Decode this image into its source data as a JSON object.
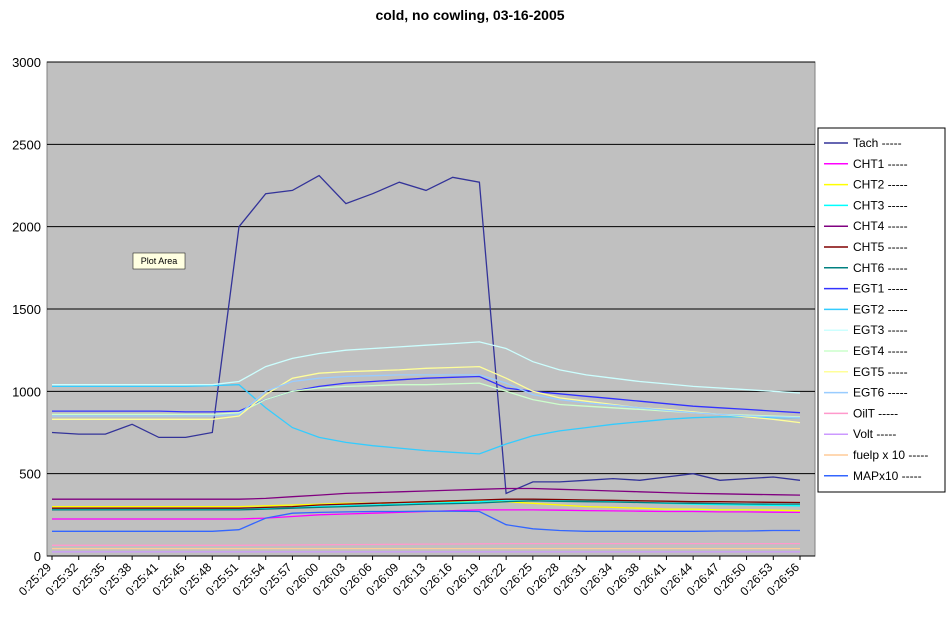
{
  "chart_data": {
    "type": "line",
    "title": "cold, no cowling, 03-16-2005",
    "annotation": "Plot Area",
    "categories": [
      "0:25:29",
      "0:25:32",
      "0:25:35",
      "0:25:38",
      "0:25:41",
      "0:25:45",
      "0:25:48",
      "0:25:51",
      "0:25:54",
      "0:25:57",
      "0:26:00",
      "0:26:03",
      "0:26:06",
      "0:26:09",
      "0:26:13",
      "0:26:16",
      "0:26:19",
      "0:26:22",
      "0:26:25",
      "0:26:28",
      "0:26:31",
      "0:26:34",
      "0:26:38",
      "0:26:41",
      "0:26:44",
      "0:26:47",
      "0:26:50",
      "0:26:53",
      "0:26:56"
    ],
    "ylim": [
      0,
      3000
    ],
    "yticks": [
      0,
      500,
      1000,
      1500,
      2000,
      2500,
      3000
    ],
    "grid": true,
    "legend": "right",
    "series": [
      {
        "name": "Tach -----",
        "color": "#333399",
        "values": [
          750,
          740,
          740,
          800,
          720,
          720,
          750,
          2000,
          2200,
          2220,
          2310,
          2140,
          2200,
          2270,
          2220,
          2300,
          2270,
          380,
          450,
          450,
          460,
          470,
          460,
          480,
          500,
          460,
          470,
          480,
          460
        ]
      },
      {
        "name": "CHT1 -----",
        "color": "#ff00ff",
        "values": [
          225,
          225,
          225,
          225,
          225,
          225,
          225,
          225,
          230,
          240,
          250,
          255,
          260,
          265,
          270,
          275,
          280,
          280,
          280,
          278,
          276,
          274,
          272,
          270,
          270,
          268,
          268,
          266,
          265
        ]
      },
      {
        "name": "CHT2 -----",
        "color": "#ffff00",
        "values": [
          300,
          300,
          300,
          300,
          300,
          300,
          300,
          300,
          305,
          310,
          315,
          320,
          320,
          325,
          330,
          330,
          335,
          330,
          320,
          310,
          300,
          295,
          290,
          285,
          285,
          280,
          280,
          278,
          275
        ]
      },
      {
        "name": "CHT3 -----",
        "color": "#00ffff",
        "values": [
          285,
          285,
          285,
          285,
          285,
          285,
          285,
          285,
          290,
          295,
          300,
          305,
          310,
          315,
          320,
          325,
          330,
          340,
          345,
          340,
          335,
          330,
          325,
          320,
          315,
          312,
          310,
          308,
          305
        ]
      },
      {
        "name": "CHT4 -----",
        "color": "#800080",
        "values": [
          345,
          345,
          345,
          345,
          345,
          345,
          345,
          345,
          350,
          360,
          370,
          380,
          385,
          390,
          395,
          400,
          405,
          410,
          410,
          405,
          400,
          395,
          390,
          385,
          380,
          378,
          375,
          372,
          370
        ]
      },
      {
        "name": "CHT5 -----",
        "color": "#800000",
        "values": [
          290,
          290,
          290,
          290,
          290,
          290,
          290,
          290,
          295,
          300,
          310,
          315,
          320,
          325,
          330,
          335,
          340,
          345,
          345,
          343,
          340,
          338,
          335,
          333,
          330,
          330,
          328,
          326,
          325
        ]
      },
      {
        "name": "CHT6 -----",
        "color": "#008080",
        "values": [
          280,
          280,
          280,
          280,
          280,
          280,
          280,
          280,
          285,
          290,
          295,
          300,
          305,
          310,
          315,
          318,
          322,
          330,
          335,
          332,
          330,
          328,
          325,
          322,
          320,
          318,
          316,
          315,
          315
        ]
      },
      {
        "name": "EGT1 -----",
        "color": "#3333ff",
        "values": [
          880,
          880,
          880,
          880,
          880,
          875,
          875,
          880,
          950,
          1000,
          1030,
          1050,
          1060,
          1070,
          1080,
          1085,
          1090,
          1020,
          1000,
          985,
          970,
          955,
          940,
          925,
          910,
          900,
          890,
          880,
          870
        ]
      },
      {
        "name": "EGT2 -----",
        "color": "#33ccff",
        "values": [
          1030,
          1030,
          1030,
          1030,
          1030,
          1030,
          1035,
          1040,
          900,
          780,
          720,
          690,
          670,
          655,
          640,
          630,
          620,
          680,
          730,
          760,
          780,
          800,
          815,
          830,
          840,
          845,
          845,
          840,
          840
        ]
      },
      {
        "name": "EGT3 -----",
        "color": "#ccffff",
        "values": [
          1040,
          1040,
          1040,
          1040,
          1040,
          1040,
          1040,
          1060,
          1150,
          1200,
          1230,
          1250,
          1260,
          1270,
          1280,
          1290,
          1300,
          1260,
          1180,
          1130,
          1100,
          1080,
          1060,
          1045,
          1030,
          1020,
          1010,
          1000,
          990
        ]
      },
      {
        "name": "EGT4 -----",
        "color": "#ccffcc",
        "values": [
          860,
          860,
          860,
          860,
          860,
          860,
          860,
          870,
          950,
          1000,
          1020,
          1030,
          1035,
          1040,
          1040,
          1045,
          1050,
          1000,
          950,
          920,
          910,
          900,
          890,
          880,
          870,
          860,
          855,
          850,
          845
        ]
      },
      {
        "name": "EGT5 -----",
        "color": "#ffff99",
        "values": [
          830,
          830,
          830,
          830,
          830,
          830,
          830,
          850,
          980,
          1080,
          1110,
          1120,
          1125,
          1130,
          1140,
          1145,
          1150,
          1080,
          1000,
          960,
          940,
          920,
          900,
          890,
          875,
          860,
          845,
          830,
          810
        ]
      },
      {
        "name": "EGT6 -----",
        "color": "#99ccff",
        "values": [
          850,
          850,
          850,
          850,
          850,
          850,
          850,
          860,
          1000,
          1060,
          1080,
          1090,
          1095,
          1100,
          1100,
          1100,
          1100,
          1050,
          980,
          950,
          930,
          915,
          900,
          885,
          870,
          860,
          850,
          845,
          840
        ]
      },
      {
        "name": "OilT -----",
        "color": "#ff99cc",
        "values": [
          65,
          65,
          65,
          65,
          65,
          65,
          65,
          65,
          66,
          67,
          68,
          69,
          70,
          71,
          72,
          73,
          74,
          75,
          75,
          75,
          75,
          75,
          75,
          75,
          75,
          75,
          75,
          75,
          75
        ]
      },
      {
        "name": "Volt -----",
        "color": "#cc99ff",
        "values": [
          25,
          25,
          25,
          25,
          25,
          25,
          25,
          25,
          25,
          25,
          25,
          25,
          25,
          25,
          25,
          25,
          25,
          25,
          25,
          25,
          25,
          25,
          25,
          25,
          25,
          25,
          25,
          25,
          25
        ]
      },
      {
        "name": "fuelp x 10 -----",
        "color": "#ffcc99",
        "values": [
          45,
          45,
          45,
          45,
          45,
          45,
          45,
          45,
          45,
          45,
          45,
          45,
          45,
          45,
          45,
          45,
          45,
          45,
          45,
          45,
          45,
          45,
          45,
          45,
          45,
          45,
          45,
          45,
          45
        ]
      },
      {
        "name": "MAPx10 -----",
        "color": "#3366ff",
        "values": [
          150,
          150,
          150,
          150,
          150,
          150,
          150,
          160,
          230,
          260,
          265,
          268,
          270,
          270,
          272,
          272,
          270,
          190,
          165,
          155,
          150,
          150,
          150,
          150,
          150,
          152,
          152,
          155,
          155
        ]
      }
    ]
  }
}
